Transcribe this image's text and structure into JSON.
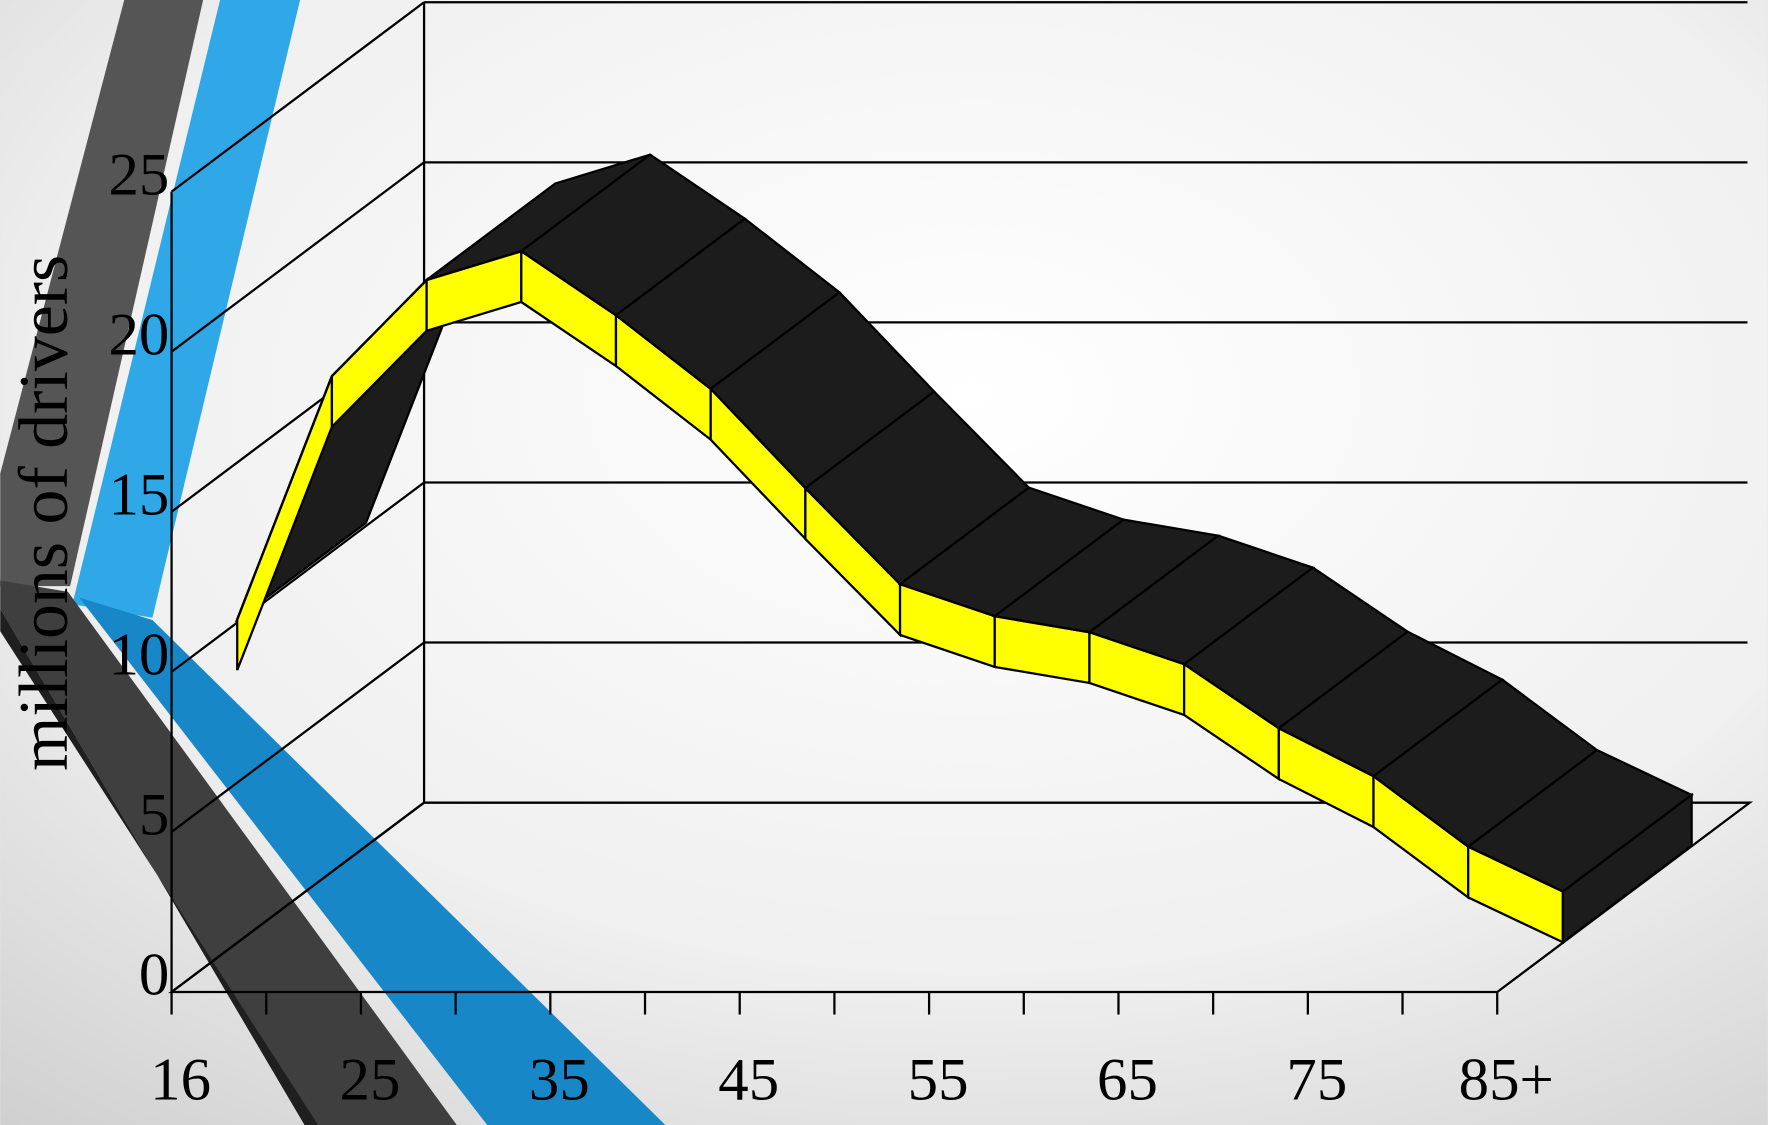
{
  "chart_data": {
    "type": "line3d",
    "y_label": "millions of drivers",
    "categories": [
      "16",
      null,
      "25",
      null,
      "35",
      null,
      "45",
      null,
      "55",
      null,
      "65",
      null,
      "75",
      null,
      "85+"
    ],
    "values": [
      10.1,
      17.7,
      20.7,
      21.6,
      19.6,
      17.3,
      14.2,
      11.2,
      10.2,
      9.7,
      8.7,
      6.7,
      5.2,
      3.0,
      1.6
    ],
    "color": "#ffff00",
    "top_color": "#1c1c1c",
    "ylim": [
      0,
      25
    ],
    "yticks": [
      0,
      5,
      10,
      15,
      20,
      25
    ],
    "grid": true
  }
}
